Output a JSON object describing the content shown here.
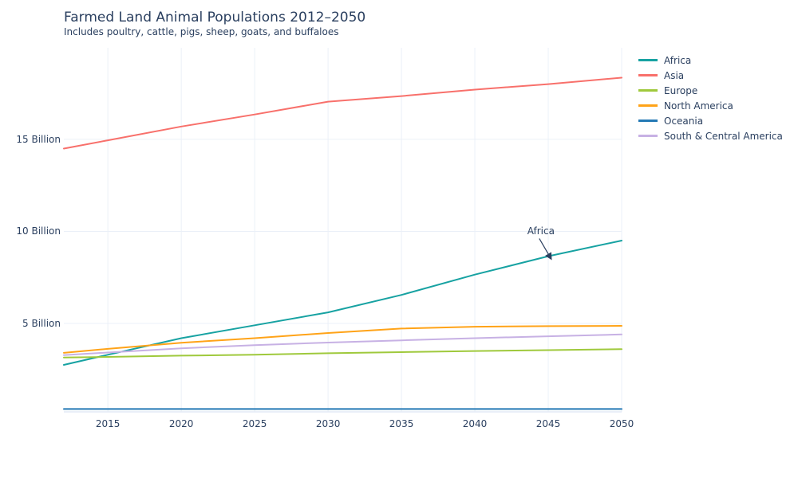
{
  "header": {
    "title": "Farmed Land Animal Populations 2012–2050",
    "subtitle": "Includes poultry, cattle, pigs, sheep, goats, and buffaloes"
  },
  "colors": {
    "text": "#2a3f5f",
    "gridline": "#ebf0f8",
    "axis_line": "#e3eaf5",
    "background": "#ffffff"
  },
  "chart_data": {
    "type": "line",
    "title": "Farmed Land Animal Populations 2012–2050",
    "subtitle": "Includes poultry, cattle, pigs, sheep, goats, and buffaloes",
    "xlabel": "",
    "ylabel": "",
    "x_range": [
      2012,
      2050
    ],
    "y_unit": "Billion",
    "grid": true,
    "legend_position": "right",
    "years": [
      2012,
      2015,
      2020,
      2025,
      2030,
      2035,
      2040,
      2045,
      2050
    ],
    "series": [
      {
        "name": "Africa",
        "color": "#17a2a2",
        "values": [
          2.75,
          3.3,
          4.2,
          4.9,
          5.6,
          6.55,
          7.65,
          8.65,
          9.5
        ]
      },
      {
        "name": "Asia",
        "color": "#f8706b",
        "values": [
          14.5,
          14.95,
          15.7,
          16.35,
          17.05,
          17.35,
          17.7,
          18.0,
          18.35
        ]
      },
      {
        "name": "Europe",
        "color": "#9fc93c",
        "values": [
          3.15,
          3.18,
          3.25,
          3.3,
          3.38,
          3.44,
          3.5,
          3.55,
          3.6
        ]
      },
      {
        "name": "North America",
        "color": "#ffa318",
        "values": [
          3.4,
          3.62,
          3.95,
          4.2,
          4.48,
          4.72,
          4.82,
          4.85,
          4.87
        ]
      },
      {
        "name": "Oceania",
        "color": "#2479b5",
        "values": [
          0.35,
          0.35,
          0.35,
          0.35,
          0.35,
          0.35,
          0.35,
          0.35,
          0.35
        ]
      },
      {
        "name": "South & Central America",
        "color": "#c7b1e4",
        "values": [
          3.28,
          3.42,
          3.65,
          3.82,
          3.96,
          4.08,
          4.2,
          4.3,
          4.4
        ]
      }
    ],
    "x_ticks": [
      {
        "value": 2015,
        "label": "2015"
      },
      {
        "value": 2020,
        "label": "2020"
      },
      {
        "value": 2025,
        "label": "2025"
      },
      {
        "value": 2030,
        "label": "2030"
      },
      {
        "value": 2035,
        "label": "2035"
      },
      {
        "value": 2040,
        "label": "2040"
      },
      {
        "value": 2045,
        "label": "2045"
      },
      {
        "value": 2050,
        "label": "2050"
      }
    ],
    "y_ticks": [
      {
        "value": 5,
        "label": "5 Billion"
      },
      {
        "value": 10,
        "label": "10 Billion"
      },
      {
        "value": 15,
        "label": "15 Billion"
      }
    ],
    "annotation": {
      "text": "Africa",
      "label_year": 2044.5,
      "label_value": 10.0,
      "tip_year": 2045.0,
      "tip_value": 8.74
    }
  }
}
